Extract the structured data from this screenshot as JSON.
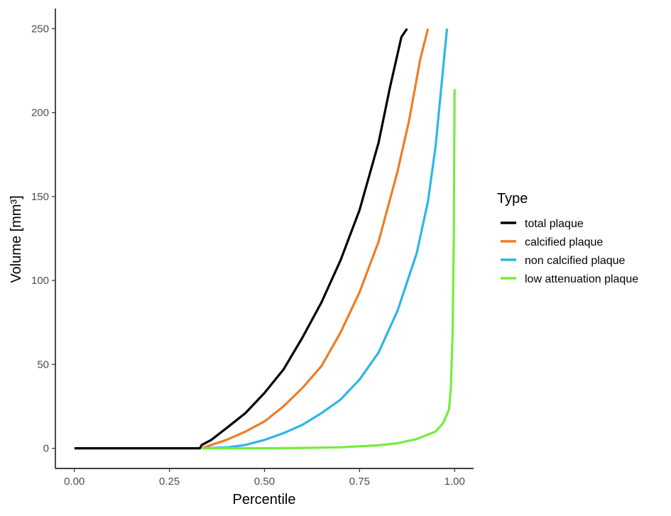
{
  "chart_data": {
    "type": "line",
    "xlabel": "Percentile",
    "ylabel": "Volume [mm³]",
    "xlim": [
      -0.05,
      1.05
    ],
    "ylim": [
      -12,
      262
    ],
    "x_ticks": [
      0,
      0.25,
      0.5,
      0.75,
      1
    ],
    "x_tick_labels": [
      "0.00",
      "0.25",
      "0.50",
      "0.75",
      "1.00"
    ],
    "y_ticks": [
      0,
      50,
      100,
      150,
      200,
      250
    ],
    "y_tick_labels": [
      "0",
      "50",
      "100",
      "150",
      "200",
      "250"
    ],
    "grid": false,
    "legend": {
      "title": "Type",
      "position": "right"
    },
    "series": [
      {
        "name": "total plaque",
        "color": "#000000",
        "points": [
          [
            0,
            0
          ],
          [
            0.33,
            0
          ],
          [
            0.335,
            2
          ],
          [
            0.36,
            5
          ],
          [
            0.4,
            12
          ],
          [
            0.45,
            21
          ],
          [
            0.5,
            33
          ],
          [
            0.55,
            47
          ],
          [
            0.6,
            66
          ],
          [
            0.65,
            87
          ],
          [
            0.7,
            112
          ],
          [
            0.75,
            142
          ],
          [
            0.8,
            182
          ],
          [
            0.83,
            215
          ],
          [
            0.86,
            245
          ],
          [
            0.875,
            250
          ]
        ]
      },
      {
        "name": "calcified plaque",
        "color": "#ee7d25",
        "points": [
          [
            0.335,
            0
          ],
          [
            0.36,
            2
          ],
          [
            0.4,
            5
          ],
          [
            0.45,
            10
          ],
          [
            0.5,
            16
          ],
          [
            0.55,
            25
          ],
          [
            0.6,
            36
          ],
          [
            0.65,
            49
          ],
          [
            0.7,
            69
          ],
          [
            0.75,
            93
          ],
          [
            0.8,
            123
          ],
          [
            0.85,
            165
          ],
          [
            0.88,
            195
          ],
          [
            0.91,
            232
          ],
          [
            0.93,
            250
          ]
        ]
      },
      {
        "name": "non calcified plaque",
        "color": "#2fb5e8",
        "points": [
          [
            0.335,
            0
          ],
          [
            0.4,
            0.5
          ],
          [
            0.45,
            2
          ],
          [
            0.5,
            5
          ],
          [
            0.55,
            9
          ],
          [
            0.6,
            14
          ],
          [
            0.65,
            21
          ],
          [
            0.7,
            29
          ],
          [
            0.75,
            41
          ],
          [
            0.8,
            57
          ],
          [
            0.85,
            82
          ],
          [
            0.9,
            116
          ],
          [
            0.93,
            147
          ],
          [
            0.95,
            180
          ],
          [
            0.97,
            227
          ],
          [
            0.98,
            250
          ]
        ]
      },
      {
        "name": "low attenuation plaque",
        "color": "#77ec3c",
        "points": [
          [
            0.335,
            0
          ],
          [
            0.5,
            0
          ],
          [
            0.6,
            0.2
          ],
          [
            0.7,
            0.6
          ],
          [
            0.8,
            1.8
          ],
          [
            0.85,
            3
          ],
          [
            0.9,
            5.5
          ],
          [
            0.95,
            10
          ],
          [
            0.97,
            15
          ],
          [
            0.985,
            23
          ],
          [
            0.99,
            35
          ],
          [
            0.995,
            70
          ],
          [
            0.998,
            130
          ],
          [
            1,
            214
          ]
        ]
      }
    ]
  }
}
